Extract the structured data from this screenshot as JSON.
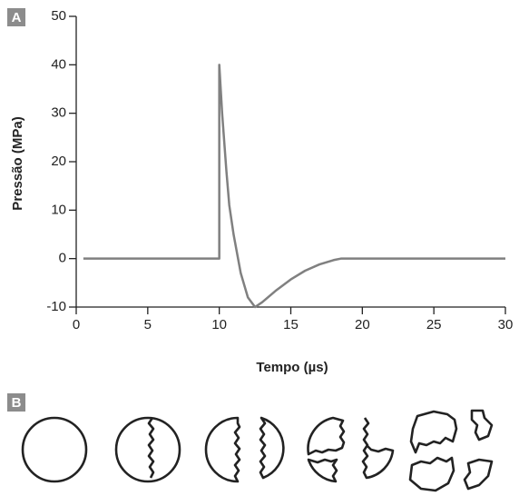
{
  "chart_data": {
    "type": "line",
    "panel_label": "A",
    "x_label": "Tempo (µs)",
    "y_label": "Pressão (MPa)",
    "x": [
      0.5,
      10,
      10,
      10.2,
      10.5,
      10.7,
      11,
      11.5,
      12,
      12.5,
      13,
      14,
      15,
      16,
      17,
      18,
      18.5,
      30
    ],
    "values": [
      0,
      0,
      40,
      30,
      18,
      11,
      5,
      -3,
      -8,
      -10,
      -9,
      -6.5,
      -4.3,
      -2.5,
      -1.2,
      -0.3,
      0,
      0
    ],
    "color": "#808080",
    "xlim": [
      0,
      30
    ],
    "xticks": [
      0,
      5,
      10,
      15,
      20,
      25,
      30
    ],
    "ylim": [
      -10,
      50
    ],
    "yticks": [
      -10,
      0,
      10,
      20,
      30,
      40,
      50
    ]
  },
  "panel_b": {
    "label": "B"
  }
}
